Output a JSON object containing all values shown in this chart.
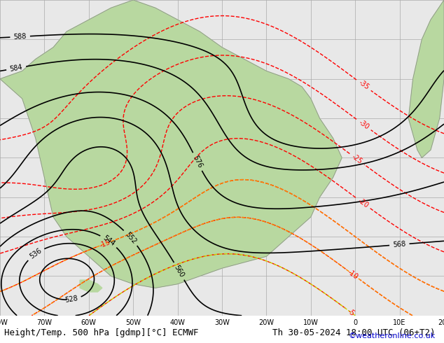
{
  "title_left": "Height/Temp. 500 hPa [gdmp][°C] ECMWF",
  "title_right": "Th 30-05-2024 18:00 UTC (06+T2)",
  "credit": "©weatheronline.co.uk",
  "background_ocean": "#e8e8e8",
  "background_land": "#b8d8a0",
  "grid_color": "#aaaaaa",
  "contour_color": "#000000",
  "temp_colors": {
    "negative_strong": "#ff0000",
    "negative_moderate": "#ff8c00",
    "negative_light": "#ffcc00",
    "positive_light": "#00cc00",
    "positive_moderate": "#00aacc",
    "positive_strong": "#0000ff"
  },
  "fig_width": 6.34,
  "fig_height": 4.9,
  "dpi": 100,
  "bottom_bar_color": "#ffffff",
  "bottom_bar_height": 0.08,
  "title_fontsize": 9,
  "credit_fontsize": 8,
  "credit_color": "#0000cc"
}
